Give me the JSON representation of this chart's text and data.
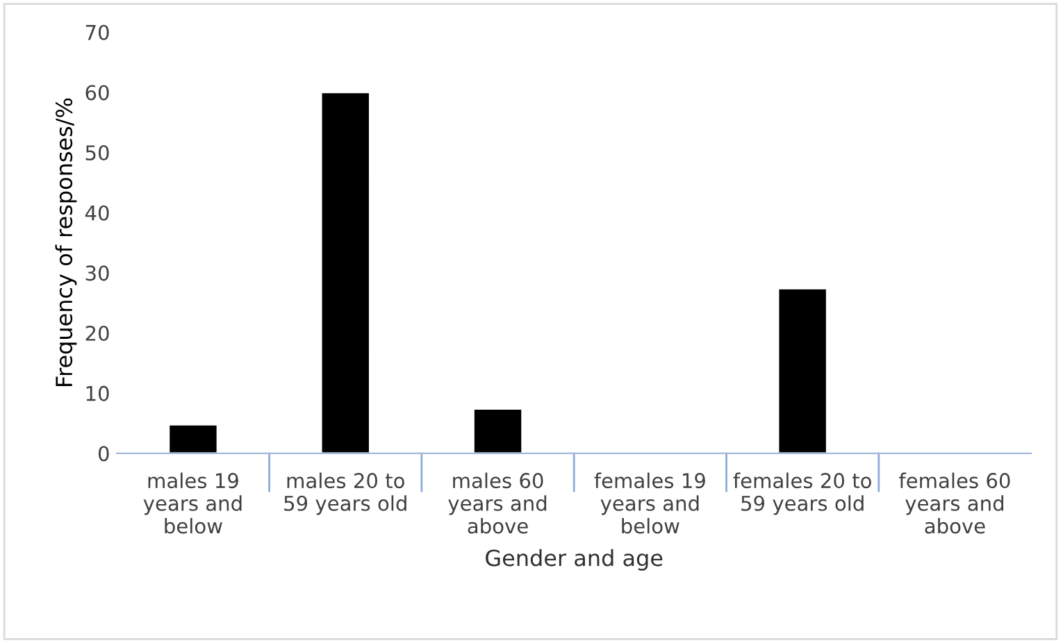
{
  "chart_data": {
    "type": "bar",
    "categories": [
      "males 19\nyears and\nbelow",
      "males 20 to\n59 years old",
      "males 60\nyears and\nabove",
      "females 19\nyears and\nbelow",
      "females 20 to\n59 years old",
      "females 60\nyears and\nabove"
    ],
    "values": [
      4.8,
      60,
      7.4,
      null,
      27.4,
      null
    ],
    "color": "#000000",
    "xlabel": "Gender and age",
    "ylabel": "Frequency of responses/%",
    "ylim": [
      0,
      70
    ],
    "yticks": [
      0,
      10,
      20,
      30,
      40,
      50,
      60,
      70
    ],
    "grid": false,
    "legend": false
  }
}
